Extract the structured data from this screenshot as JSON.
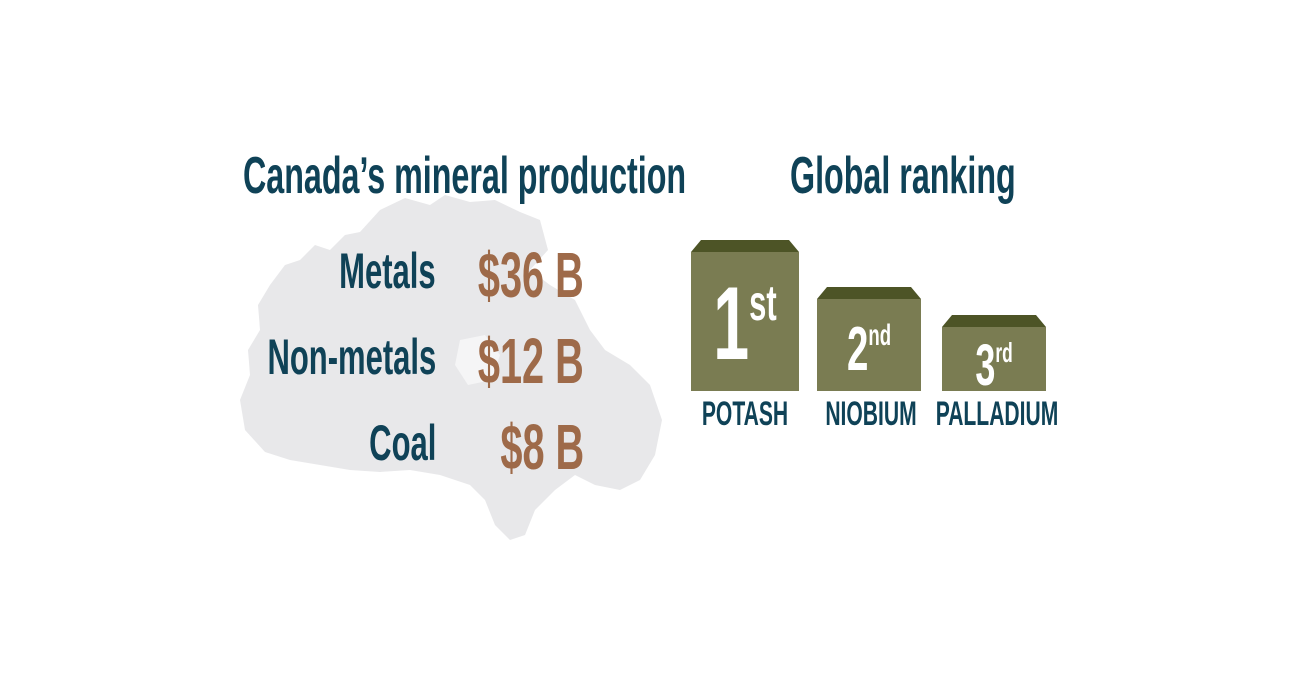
{
  "colors": {
    "heading": "#0f4257",
    "value": "#9e6a49",
    "podium_body": "#7a7c52",
    "podium_top": "#4d5426",
    "map": "#e8e8ea"
  },
  "production": {
    "title": "Canada’s mineral production",
    "items": [
      {
        "label": "Metals",
        "value": "$36 B"
      },
      {
        "label": "Non-metals",
        "value": "$12 B"
      },
      {
        "label": "Coal",
        "value": "$8 B"
      }
    ]
  },
  "ranking": {
    "title": "Global ranking",
    "items": [
      {
        "rank": "1",
        "suffix": "st",
        "mineral": "POTASH"
      },
      {
        "rank": "2",
        "suffix": "nd",
        "mineral": "NIOBIUM"
      },
      {
        "rank": "3",
        "suffix": "rd",
        "mineral": "PALLADIUM"
      }
    ]
  }
}
